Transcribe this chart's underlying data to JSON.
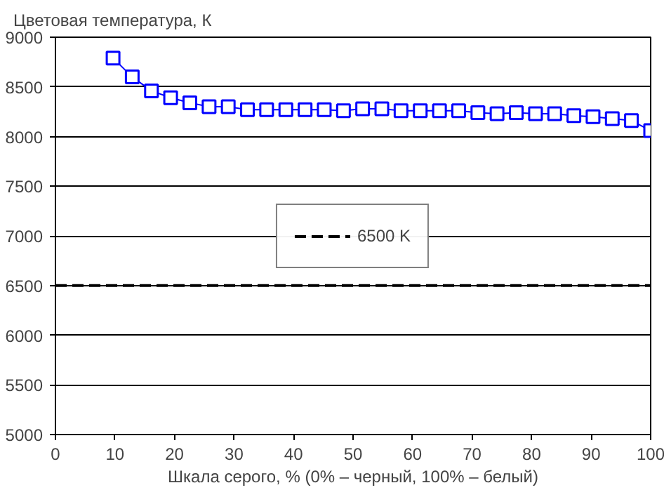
{
  "chart_data": {
    "type": "line",
    "ylabel": "Цветовая температура, К",
    "xlabel": "Шкала серого, % (0% – черный, 100% – белый)",
    "x": [
      9.68,
      12.9,
      16.13,
      19.35,
      22.58,
      25.81,
      29.03,
      32.26,
      35.48,
      38.71,
      41.94,
      45.16,
      48.39,
      51.61,
      54.84,
      58.06,
      61.29,
      64.52,
      67.74,
      70.97,
      74.19,
      77.42,
      80.65,
      83.87,
      87.1,
      90.32,
      93.55,
      96.77,
      100
    ],
    "series": [
      {
        "color": "#0000ff",
        "values": [
          8790,
          8600,
          8460,
          8390,
          8340,
          8300,
          8300,
          8270,
          8270,
          8270,
          8270,
          8270,
          8260,
          8280,
          8280,
          8260,
          8260,
          8260,
          8260,
          8240,
          8230,
          8240,
          8230,
          8230,
          8210,
          8200,
          8180,
          8160,
          8060
        ]
      }
    ],
    "ref_lines": [
      {
        "axis": "y",
        "value": 6500,
        "label": "6500 K",
        "color": "#000000",
        "line_style": "dashed"
      }
    ],
    "xlim": [
      0,
      100
    ],
    "xticks": [
      0,
      10,
      20,
      30,
      40,
      50,
      60,
      70,
      80,
      90,
      100
    ],
    "ylim": [
      5000,
      9000
    ],
    "yticks": [
      5000,
      5500,
      6000,
      6500,
      7000,
      7500,
      8000,
      8500,
      9000
    ],
    "grid": "y",
    "legend": "center",
    "marker": "square",
    "line_style": "solid"
  }
}
